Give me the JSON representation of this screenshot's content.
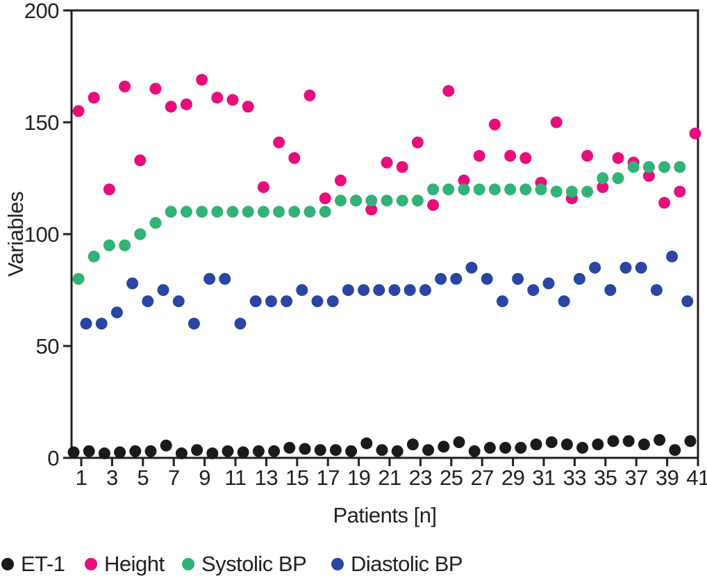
{
  "chart_data": {
    "type": "scatter",
    "title": "",
    "xlabel": "Patients [n]",
    "ylabel": "Variables",
    "xlim": [
      0,
      42
    ],
    "ylim": [
      0,
      200
    ],
    "y_ticks": [
      0,
      50,
      100,
      150,
      200
    ],
    "x_ticks": [
      1,
      3,
      5,
      7,
      9,
      11,
      13,
      15,
      17,
      19,
      21,
      23,
      25,
      27,
      29,
      31,
      33,
      35,
      37,
      39,
      41
    ],
    "grid": false,
    "legend_position": "bottom-left",
    "axis_color": "#231f20",
    "marker": "circle",
    "series": [
      {
        "name": "ET-1",
        "color": "#1d191a",
        "x": [
          1,
          2,
          3,
          4,
          5,
          6,
          7,
          8,
          9,
          10,
          11,
          12,
          13,
          14,
          15,
          16,
          17,
          18,
          19,
          20,
          21,
          22,
          23,
          24,
          25,
          26,
          27,
          28,
          29,
          30,
          31,
          32,
          33,
          34,
          35,
          36,
          37,
          38,
          39,
          40,
          41
        ],
        "y": [
          2.5,
          3,
          2,
          2.5,
          3,
          3,
          5.5,
          2,
          3.5,
          2,
          3,
          2.5,
          3,
          3,
          4.5,
          4,
          3.5,
          3.5,
          3,
          6.5,
          3.5,
          3,
          6,
          3.5,
          5,
          7,
          3,
          4.5,
          4.5,
          4.5,
          6,
          7,
          6,
          4.5,
          6,
          7.5,
          7.5,
          6,
          8,
          3.5,
          7.5
        ]
      },
      {
        "name": "Height",
        "color": "#e90d7c",
        "x": [
          1,
          2,
          3,
          4,
          5,
          6,
          7,
          8,
          9,
          10,
          11,
          12,
          13,
          14,
          15,
          16,
          17,
          18,
          19,
          20,
          21,
          22,
          23,
          24,
          25,
          26,
          27,
          28,
          29,
          30,
          31,
          32,
          33,
          34,
          35,
          36,
          37,
          38,
          39,
          40,
          41
        ],
        "y": [
          155,
          161,
          120,
          166,
          133,
          165,
          157,
          158,
          169,
          161,
          160,
          157,
          121,
          141,
          134,
          162,
          116,
          124,
          115,
          111,
          132,
          130,
          141,
          113,
          164,
          124,
          135,
          149,
          135,
          134,
          123,
          150,
          116,
          135,
          121,
          134,
          132,
          126,
          114,
          119,
          145
        ]
      },
      {
        "name": "Systolic BP",
        "color": "#32b277",
        "x": [
          1,
          2,
          3,
          4,
          5,
          6,
          7,
          8,
          9,
          10,
          11,
          12,
          13,
          14,
          15,
          16,
          17,
          18,
          19,
          20,
          21,
          22,
          23,
          24,
          25,
          26,
          27,
          28,
          29,
          30,
          31,
          32,
          33,
          34,
          35,
          36,
          37,
          38,
          39,
          40
        ],
        "y": [
          80,
          90,
          95,
          95,
          100,
          105,
          110,
          110,
          110,
          110,
          110,
          110,
          110,
          110,
          110,
          110,
          110,
          115,
          115,
          115,
          115,
          115,
          115,
          120,
          120,
          120,
          120,
          120,
          120,
          120,
          120,
          119,
          119,
          119,
          125,
          125,
          130,
          130,
          130,
          130
        ]
      },
      {
        "name": "Diastolic BP",
        "color": "#2a45a3",
        "x": [
          1,
          2,
          3,
          4,
          5,
          6,
          7,
          8,
          9,
          10,
          11,
          12,
          13,
          14,
          15,
          16,
          17,
          18,
          19,
          20,
          21,
          22,
          23,
          24,
          25,
          26,
          27,
          28,
          29,
          30,
          31,
          32,
          33,
          34,
          35,
          36,
          37,
          38,
          39,
          40
        ],
        "y": [
          60,
          60,
          65,
          78,
          70,
          75,
          70,
          60,
          80,
          80,
          60,
          70,
          70,
          70,
          75,
          70,
          70,
          75,
          75,
          75,
          75,
          75,
          75,
          80,
          80,
          85,
          80,
          70,
          80,
          75,
          78,
          70,
          80,
          85,
          75,
          85,
          85,
          75,
          90,
          70
        ]
      }
    ]
  }
}
